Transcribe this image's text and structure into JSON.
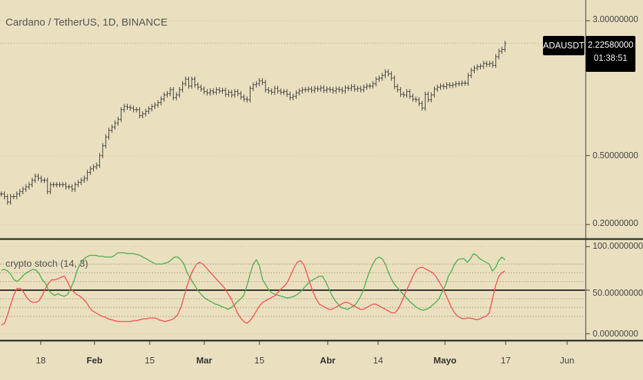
{
  "header": {
    "title": "Cardano / TetherUS, 1D, BINANCE"
  },
  "price_axis": {
    "labels": [
      "3.00000000",
      "0.50000000",
      "0.20000000"
    ]
  },
  "last_price": {
    "symbol": "ADAUSDT",
    "price": "2.22580000",
    "countdown": "01:38:51"
  },
  "indicator": {
    "title": "crypto stoch (14, 3)",
    "axis_labels": [
      "100.00000000",
      "50.00000000",
      "0.00000000"
    ]
  },
  "time_axis": {
    "labels": [
      "18",
      "Feb",
      "15",
      "Mar",
      "15",
      "Abr",
      "14",
      "Mayo",
      "17",
      "Jun"
    ]
  },
  "colors": {
    "background": "#eadfbf",
    "candle": "#3a3a3a",
    "k_line": "#4caf50",
    "d_line": "#ef5350",
    "separator": "#333333"
  },
  "chart_data": [
    {
      "type": "candlestick",
      "title": "Cardano / TetherUS, 1D, BINANCE",
      "y_scale": "log",
      "y_ticks": [
        3.0,
        0.5,
        0.2
      ],
      "x_ticks": [
        "18",
        "Feb",
        "15",
        "Mar",
        "15",
        "Abr",
        "14",
        "Mayo",
        "17",
        "Jun"
      ],
      "last_value": 2.2258,
      "close": [
        0.3,
        0.29,
        0.27,
        0.29,
        0.29,
        0.3,
        0.31,
        0.32,
        0.33,
        0.34,
        0.36,
        0.38,
        0.37,
        0.36,
        0.36,
        0.31,
        0.34,
        0.34,
        0.34,
        0.34,
        0.34,
        0.33,
        0.33,
        0.32,
        0.34,
        0.35,
        0.36,
        0.37,
        0.4,
        0.42,
        0.43,
        0.44,
        0.5,
        0.57,
        0.64,
        0.7,
        0.73,
        0.77,
        0.81,
        0.92,
        0.96,
        0.95,
        0.94,
        0.92,
        0.92,
        0.85,
        0.87,
        0.9,
        0.93,
        0.96,
        0.98,
        1.01,
        1.06,
        1.12,
        1.14,
        1.2,
        1.08,
        1.12,
        1.2,
        1.3,
        1.38,
        1.26,
        1.38,
        1.28,
        1.24,
        1.21,
        1.17,
        1.15,
        1.18,
        1.16,
        1.2,
        1.18,
        1.19,
        1.13,
        1.16,
        1.12,
        1.17,
        1.14,
        1.09,
        1.06,
        1.05,
        1.22,
        1.28,
        1.3,
        1.35,
        1.32,
        1.2,
        1.18,
        1.16,
        1.22,
        1.18,
        1.16,
        1.17,
        1.13,
        1.08,
        1.1,
        1.15,
        1.18,
        1.2,
        1.2,
        1.21,
        1.19,
        1.22,
        1.21,
        1.23,
        1.19,
        1.21,
        1.2,
        1.18,
        1.21,
        1.2,
        1.18,
        1.23,
        1.22,
        1.25,
        1.21,
        1.22,
        1.2,
        1.24,
        1.26,
        1.26,
        1.3,
        1.38,
        1.4,
        1.45,
        1.52,
        1.48,
        1.4,
        1.25,
        1.2,
        1.13,
        1.12,
        1.17,
        1.1,
        1.06,
        1.05,
        1.0,
        0.94,
        1.13,
        1.05,
        1.12,
        1.21,
        1.24,
        1.26,
        1.25,
        1.28,
        1.27,
        1.28,
        1.3,
        1.3,
        1.31,
        1.31,
        1.45,
        1.55,
        1.6,
        1.63,
        1.64,
        1.7,
        1.68,
        1.7,
        1.66,
        1.86,
        2.0,
        2.05,
        2.22
      ]
    },
    {
      "type": "line",
      "title": "crypto stoch (14, 3)",
      "ylim": [
        0,
        100
      ],
      "y_ticks": [
        100,
        50,
        0
      ],
      "bands": [
        70,
        50,
        30
      ],
      "series": [
        {
          "name": "",
          "values": [
            73,
            74,
            72,
            68,
            62,
            60,
            63,
            67,
            70,
            72,
            74,
            73,
            69,
            62,
            58,
            50,
            46,
            44,
            46,
            44,
            43,
            45,
            52,
            60,
            72,
            80,
            85,
            88,
            90,
            90,
            90,
            89,
            89,
            88,
            88,
            88,
            90,
            93,
            93,
            93,
            92,
            92,
            92,
            91,
            90,
            88,
            86,
            84,
            82,
            80,
            80,
            80,
            81,
            82,
            85,
            88,
            88,
            85,
            80,
            70,
            64,
            58,
            52,
            47,
            43,
            40,
            38,
            36,
            34,
            33,
            31,
            30,
            28,
            30,
            33,
            37,
            40,
            44,
            55,
            68,
            80,
            85,
            78,
            62,
            56,
            50,
            47,
            45,
            44,
            43,
            42,
            41,
            42,
            43,
            45,
            48,
            52,
            56,
            60,
            62,
            64,
            66,
            66,
            60,
            52,
            44,
            38,
            34,
            30,
            29,
            28,
            30,
            32,
            36,
            42,
            50,
            62,
            72,
            80,
            86,
            88,
            86,
            80,
            70,
            62,
            56,
            52,
            48,
            44,
            40,
            36,
            33,
            30,
            28,
            27,
            28,
            30,
            33,
            36,
            40,
            48,
            55,
            66,
            72,
            80,
            85,
            86,
            86,
            82,
            86,
            92,
            90,
            86,
            84,
            82,
            80,
            72,
            76,
            84,
            88,
            85
          ]
        },
        {
          "name": "",
          "values": [
            10,
            12,
            22,
            34,
            45,
            52,
            52,
            48,
            42,
            38,
            36,
            36,
            38,
            44,
            52,
            58,
            62,
            62,
            63,
            65,
            66,
            60,
            52,
            48,
            45,
            43,
            40,
            36,
            30,
            26,
            24,
            22,
            20,
            19,
            17,
            16,
            15,
            14,
            14,
            14,
            14,
            14,
            15,
            15,
            16,
            17,
            17,
            18,
            18,
            18,
            16,
            15,
            14,
            15,
            16,
            18,
            22,
            30,
            42,
            55,
            66,
            74,
            80,
            82,
            80,
            76,
            72,
            68,
            64,
            60,
            56,
            52,
            46,
            40,
            32,
            24,
            18,
            14,
            12,
            15,
            20,
            26,
            32,
            36,
            38,
            40,
            42,
            44,
            48,
            52,
            55,
            60,
            68,
            76,
            82,
            84,
            80,
            70,
            58,
            48,
            40,
            34,
            32,
            30,
            28,
            28,
            30,
            32,
            34,
            36,
            36,
            34,
            32,
            30,
            28,
            28,
            30,
            32,
            34,
            34,
            32,
            30,
            28,
            26,
            24,
            24,
            28,
            35,
            44,
            52,
            60,
            68,
            74,
            76,
            76,
            74,
            72,
            70,
            66,
            60,
            54,
            46,
            38,
            30,
            24,
            20,
            18,
            17,
            18,
            18,
            17,
            16,
            17,
            19,
            20,
            24,
            40,
            55,
            66,
            70,
            72
          ]
        }
      ]
    }
  ]
}
